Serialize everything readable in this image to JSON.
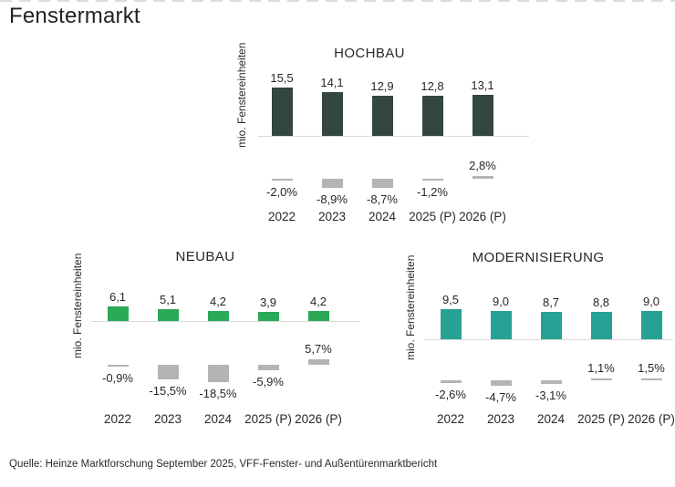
{
  "page": {
    "title": "Fenstermarkt",
    "source": "Quelle: Heinze Marktforschung September 2025, VFF-Fenster- und Außentürenmarktbericht"
  },
  "chart_data": [
    {
      "type": "bar",
      "title": "HOCHBAU",
      "ylabel": "mio. Fenstereinheiten",
      "categories": [
        "2022",
        "2023",
        "2024",
        "2025 (P)",
        "2026 (P)"
      ],
      "series": [
        {
          "id": "units_mio",
          "values": [
            15.5,
            14.1,
            12.9,
            12.8,
            13.1
          ],
          "labels": [
            "15,5",
            "14,1",
            "12,9",
            "12,8",
            "13,1"
          ],
          "color": "#334640"
        },
        {
          "id": "yoy_change_percent",
          "values": [
            -2.0,
            -8.9,
            -8.7,
            -1.2,
            2.8
          ],
          "labels": [
            "-2,0%",
            "-8,9%",
            "-8,7%",
            "-1,2%",
            "2,8%"
          ],
          "color": "#b3b5b4"
        }
      ],
      "grid": false,
      "legend": false
    },
    {
      "type": "bar",
      "title": "NEUBAU",
      "ylabel": "mio. Fenstereinheiten",
      "categories": [
        "2022",
        "2023",
        "2024",
        "2025 (P)",
        "2026 (P)"
      ],
      "series": [
        {
          "id": "units_mio",
          "values": [
            6.1,
            5.1,
            4.2,
            3.9,
            4.2
          ],
          "labels": [
            "6,1",
            "5,1",
            "4,2",
            "3,9",
            "4,2"
          ],
          "color": "#2aa957"
        },
        {
          "id": "yoy_change_percent",
          "values": [
            -0.9,
            -15.5,
            -18.5,
            -5.9,
            5.7
          ],
          "labels": [
            "-0,9%",
            "-15,5%",
            "-18,5%",
            "-5,9%",
            "5,7%"
          ],
          "color": "#b3b5b4"
        }
      ],
      "grid": false,
      "legend": false
    },
    {
      "type": "bar",
      "title": "MODERNISIERUNG",
      "ylabel": "mio. Fenstereinheiten",
      "categories": [
        "2022",
        "2023",
        "2024",
        "2025 (P)",
        "2026 (P)"
      ],
      "series": [
        {
          "id": "units_mio",
          "values": [
            9.5,
            9.0,
            8.7,
            8.8,
            9.0
          ],
          "labels": [
            "9,5",
            "9,0",
            "8,7",
            "8,8",
            "9,0"
          ],
          "color": "#26a294"
        },
        {
          "id": "yoy_change_percent",
          "values": [
            -2.6,
            -4.7,
            -3.1,
            1.1,
            1.5
          ],
          "labels": [
            "-2,6%",
            "-4,7%",
            "-3,1%",
            "1,1%",
            "1,5%"
          ],
          "color": "#b3b5b4"
        }
      ],
      "grid": false,
      "legend": false
    }
  ]
}
